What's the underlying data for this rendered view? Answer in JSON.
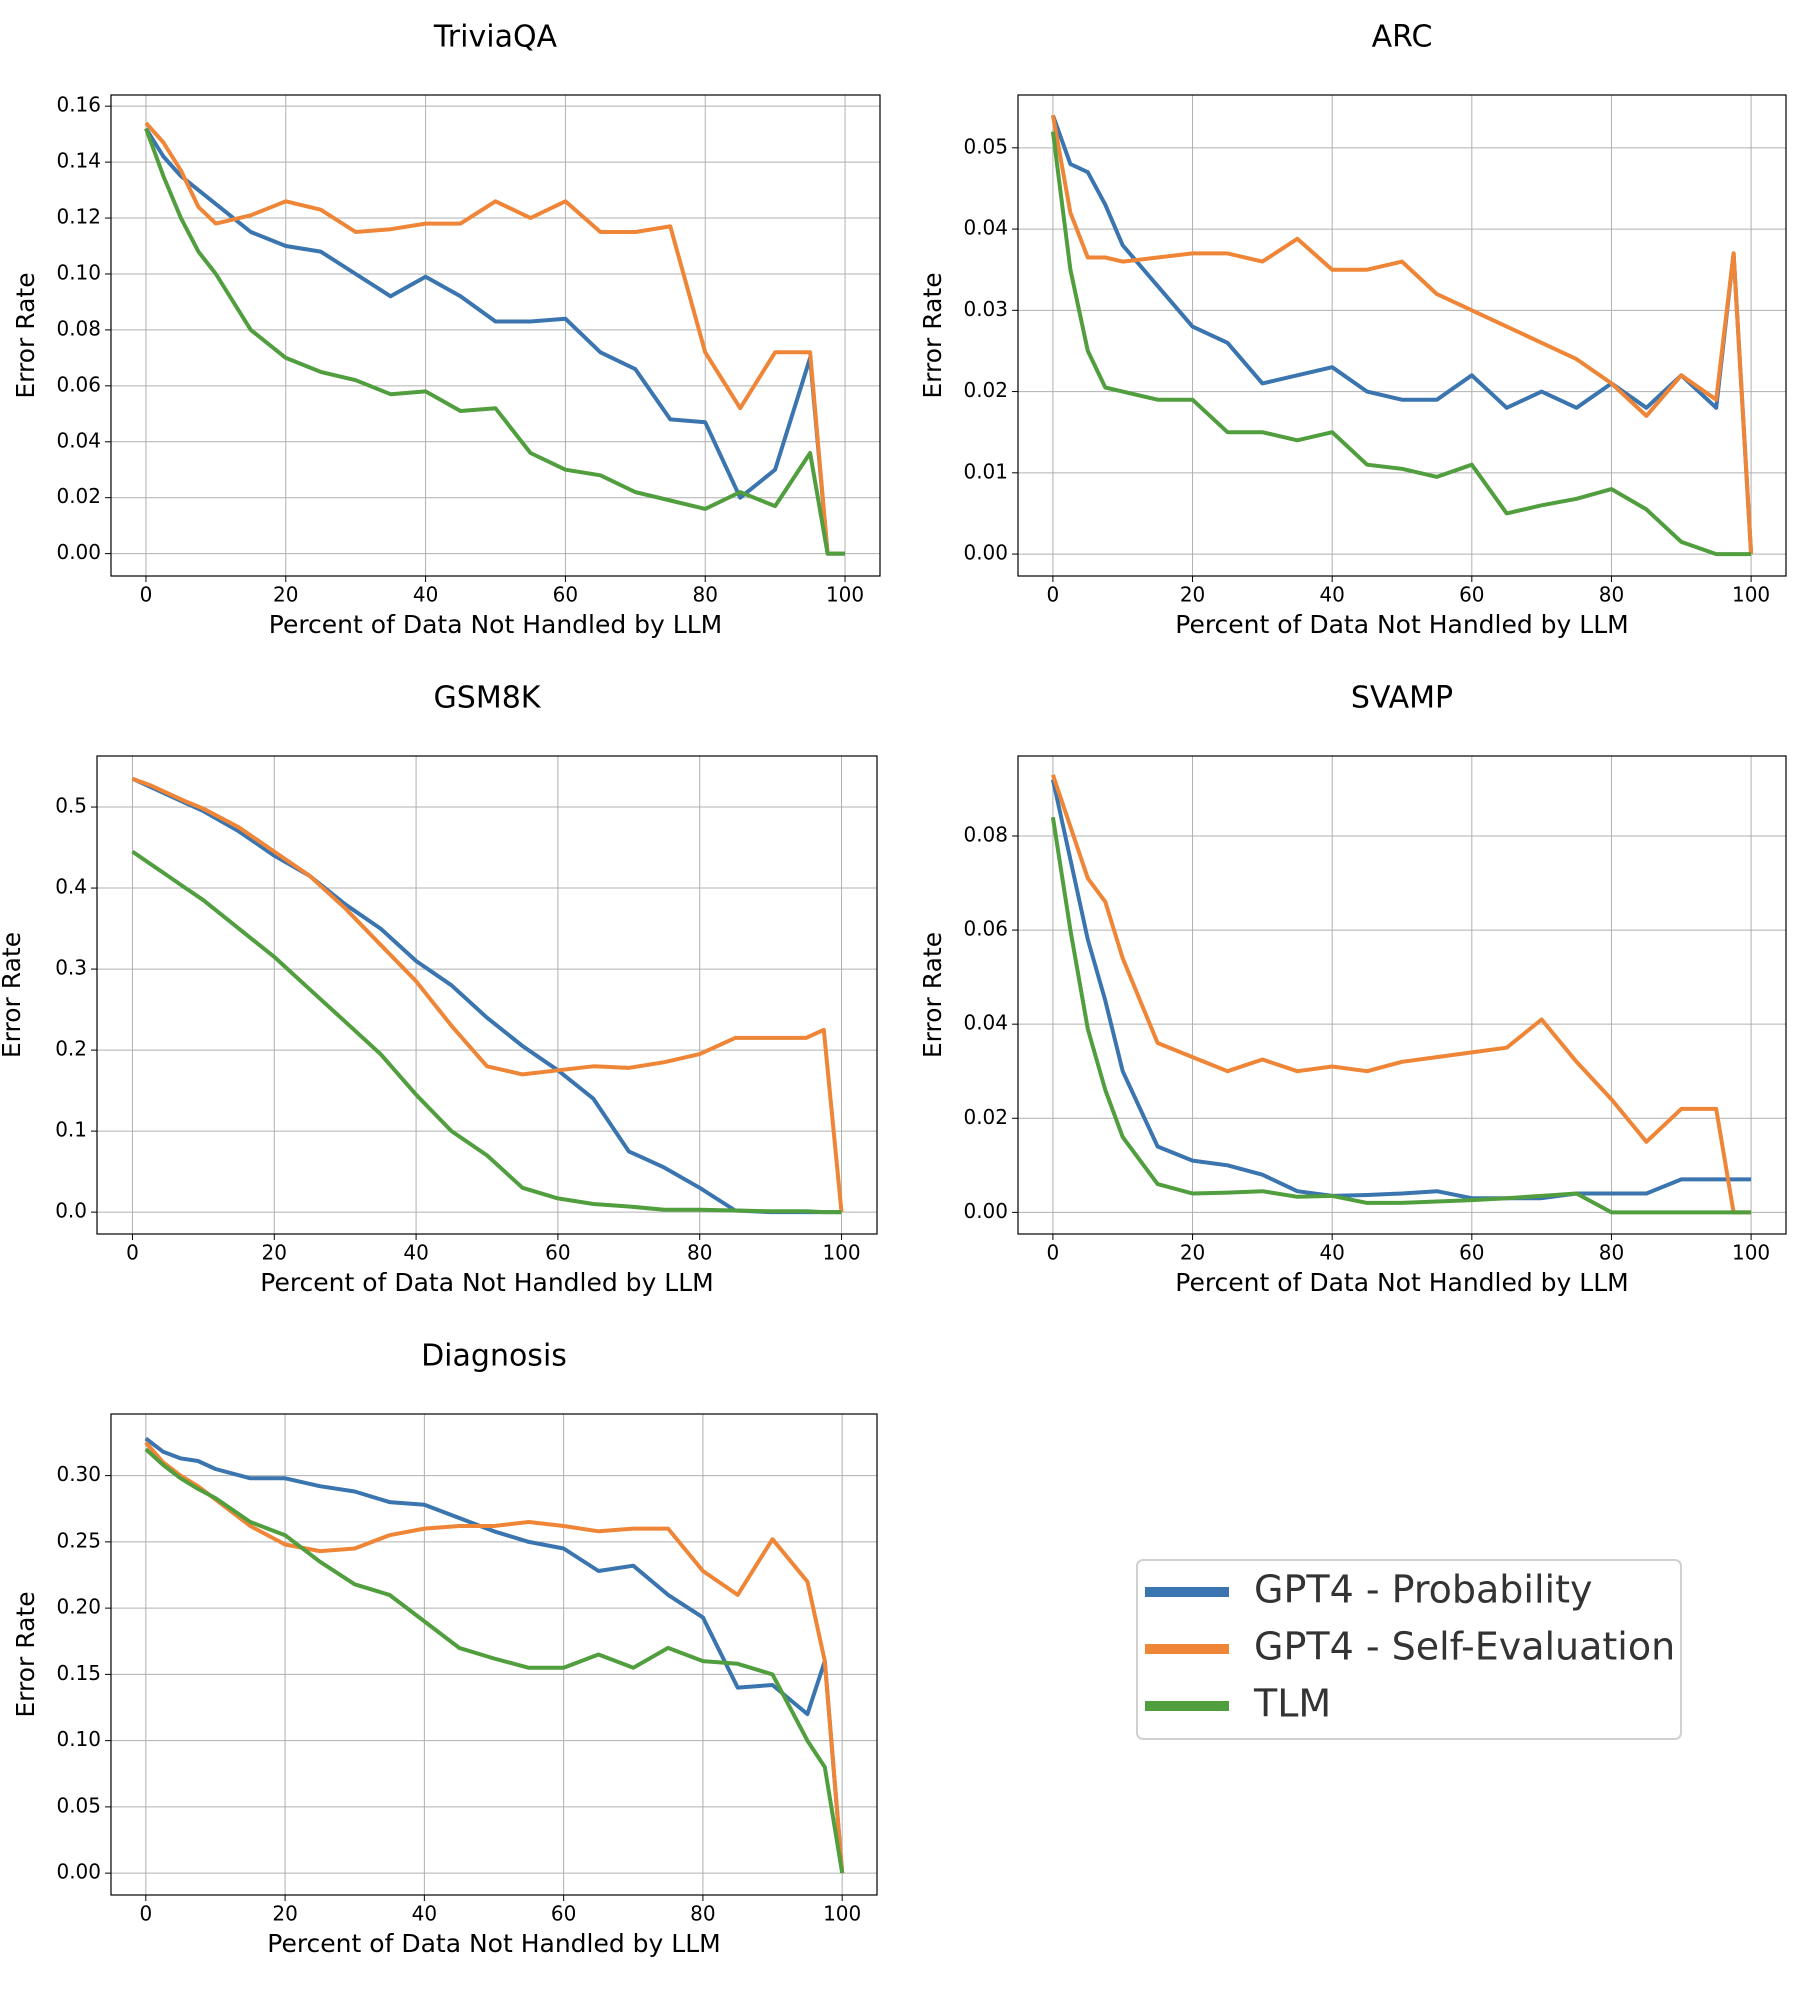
{
  "chart_data": [
    {
      "type": "line",
      "title": "TriviaQA",
      "xlabel": "Percent of Data Not Handled by LLM",
      "ylabel": "Error Rate",
      "grid": true,
      "legend": true,
      "x": [
        0,
        2.5,
        5,
        7.5,
        10,
        15,
        20,
        25,
        30,
        35,
        40,
        45,
        50,
        55,
        60,
        65,
        70,
        75,
        80,
        85,
        90,
        95,
        97.5,
        100
      ],
      "xlim": [
        -5,
        105
      ],
      "xticks": [
        0,
        20,
        40,
        60,
        80,
        100
      ],
      "ylim": [
        -0.008,
        0.164
      ],
      "yticks": [
        {
          "value": 0,
          "label": "0.00"
        },
        {
          "value": 0.02,
          "label": "0.02"
        },
        {
          "value": 0.04,
          "label": "0.04"
        },
        {
          "value": 0.06,
          "label": "0.06"
        },
        {
          "value": 0.08,
          "label": "0.08"
        },
        {
          "value": 0.1,
          "label": "0.10"
        },
        {
          "value": 0.12,
          "label": "0.12"
        },
        {
          "value": 0.14,
          "label": "0.14"
        },
        {
          "value": 0.16,
          "label": "0.16"
        }
      ],
      "series": [
        {
          "name": "GPT4 - Probability",
          "color": "#3a75af",
          "values": [
            0.152,
            0.142,
            0.135,
            0.13,
            0.125,
            0.115,
            0.11,
            0.108,
            0.1,
            0.092,
            0.099,
            0.092,
            0.083,
            0.083,
            0.084,
            0.072,
            0.066,
            0.048,
            0.047,
            0.02,
            0.03,
            0.07,
            0,
            0
          ]
        },
        {
          "name": "GPT4 - Self-Evaluation",
          "color": "#ef8536",
          "values": [
            0.154,
            0.147,
            0.137,
            0.124,
            0.118,
            0.121,
            0.126,
            0.123,
            0.115,
            0.116,
            0.118,
            0.118,
            0.126,
            0.12,
            0.126,
            0.115,
            0.115,
            0.117,
            0.072,
            0.052,
            0.072,
            0.072,
            0,
            0
          ]
        },
        {
          "name": "TLM",
          "color": "#519e3e",
          "values": [
            0.152,
            0.135,
            0.12,
            0.108,
            0.1,
            0.08,
            0.07,
            0.065,
            0.062,
            0.057,
            0.058,
            0.051,
            0.052,
            0.036,
            0.03,
            0.028,
            0.022,
            0.019,
            0.016,
            0.022,
            0.017,
            0.036,
            0,
            0
          ]
        }
      ]
    },
    {
      "type": "line",
      "title": "ARC",
      "xlabel": "Percent of Data Not Handled by LLM",
      "ylabel": "Error Rate",
      "grid": true,
      "x": [
        0,
        2.5,
        5,
        7.5,
        10,
        15,
        20,
        25,
        30,
        35,
        40,
        45,
        50,
        55,
        60,
        65,
        70,
        75,
        80,
        85,
        90,
        95,
        97.5,
        100
      ],
      "xlim": [
        -5,
        105
      ],
      "xticks": [
        0,
        20,
        40,
        60,
        80,
        100
      ],
      "ylim": [
        -0.0027,
        0.0565
      ],
      "yticks": [
        {
          "value": 0,
          "label": "0.00"
        },
        0.01,
        0.02,
        0.03,
        0.04,
        0.05
      ],
      "series": [
        {
          "name": "GPT4 - Probability",
          "color": "#3a75af",
          "values": [
            0.054,
            0.048,
            0.047,
            0.043,
            0.038,
            0.033,
            0.028,
            0.026,
            0.021,
            0.022,
            0.023,
            0.02,
            0.019,
            0.019,
            0.022,
            0.018,
            0.02,
            0.018,
            0.021,
            0.018,
            0.022,
            0.018,
            0.037,
            0
          ]
        },
        {
          "name": "GPT4 - Self-Evaluation",
          "color": "#ef8536",
          "values": [
            0.054,
            0.042,
            0.0365,
            0.0365,
            0.036,
            0.0365,
            0.037,
            0.037,
            0.036,
            0.0388,
            0.035,
            0.035,
            0.036,
            0.032,
            0.03,
            0.028,
            0.026,
            0.024,
            0.021,
            0.017,
            0.022,
            0.019,
            0.037,
            0
          ]
        },
        {
          "name": "TLM",
          "color": "#519e3e",
          "values": [
            0.052,
            0.035,
            0.025,
            0.0205,
            0.02,
            0.019,
            0.019,
            0.015,
            0.015,
            0.014,
            0.015,
            0.011,
            0.0105,
            0.0095,
            0.011,
            0.005,
            0.006,
            0.0068,
            0.008,
            0.0055,
            0.0015,
            0,
            0,
            0
          ]
        }
      ]
    },
    {
      "type": "line",
      "title": "GSM8K",
      "xlabel": "Percent of Data Not Handled by LLM",
      "ylabel": "Error Rate",
      "grid": true,
      "x": [
        0,
        2.5,
        5,
        7.5,
        10,
        15,
        20,
        25,
        30,
        35,
        40,
        45,
        50,
        55,
        60,
        65,
        70,
        75,
        80,
        85,
        90,
        95,
        97.5,
        100
      ],
      "xlim": [
        -5,
        105
      ],
      "xticks": [
        0,
        20,
        40,
        60,
        80,
        100
      ],
      "ylim": [
        -0.027,
        0.563
      ],
      "yticks": [
        {
          "value": 0,
          "label": "0.0"
        },
        0.1,
        0.2,
        0.3,
        0.4,
        0.5
      ],
      "series": [
        {
          "name": "GPT4 - Probability",
          "color": "#3a75af",
          "values": [
            0.535,
            0.525,
            0.515,
            0.505,
            0.495,
            0.47,
            0.44,
            0.415,
            0.38,
            0.35,
            0.31,
            0.28,
            0.24,
            0.205,
            0.175,
            0.14,
            0.075,
            0.055,
            0.03,
            0.002,
            0,
            0,
            0,
            0
          ]
        },
        {
          "name": "GPT4 - Self-Evaluation",
          "color": "#ef8536",
          "values": [
            0.535,
            0.527,
            0.517,
            0.507,
            0.498,
            0.475,
            0.445,
            0.415,
            0.375,
            0.33,
            0.285,
            0.23,
            0.18,
            0.17,
            0.175,
            0.18,
            0.178,
            0.185,
            0.195,
            0.215,
            0.215,
            0.215,
            0.225,
            0
          ]
        },
        {
          "name": "TLM",
          "color": "#519e3e",
          "values": [
            0.445,
            0.43,
            0.415,
            0.4,
            0.385,
            0.35,
            0.315,
            0.275,
            0.235,
            0.195,
            0.145,
            0.1,
            0.07,
            0.03,
            0.017,
            0.01,
            0.007,
            0.003,
            0.003,
            0.002,
            0.001,
            0.001,
            0,
            0
          ]
        }
      ]
    },
    {
      "type": "line",
      "title": "SVAMP",
      "xlabel": "Percent of Data Not Handled by LLM",
      "ylabel": "Error Rate",
      "grid": true,
      "x": [
        0,
        2.5,
        5,
        7.5,
        10,
        15,
        20,
        25,
        30,
        35,
        40,
        45,
        50,
        55,
        60,
        65,
        70,
        75,
        80,
        85,
        90,
        95,
        97.5,
        100
      ],
      "xlim": [
        -5,
        105
      ],
      "xticks": [
        0,
        20,
        40,
        60,
        80,
        100
      ],
      "ylim": [
        -0.0046,
        0.097
      ],
      "yticks": [
        {
          "value": 0,
          "label": "0.00"
        },
        {
          "value": 0.02,
          "label": "0.02"
        },
        {
          "value": 0.04,
          "label": "0.04"
        },
        {
          "value": 0.06,
          "label": "0.06"
        },
        {
          "value": 0.08,
          "label": "0.08"
        }
      ],
      "series": [
        {
          "name": "GPT4 - Probability",
          "color": "#3a75af",
          "values": [
            0.092,
            0.075,
            0.058,
            0.045,
            0.03,
            0.014,
            0.011,
            0.01,
            0.008,
            0.0045,
            0.0035,
            0.0037,
            0.004,
            0.0045,
            0.003,
            0.003,
            0.003,
            0.004,
            0.004,
            0.004,
            0.007,
            0.007,
            0.007,
            0.007
          ]
        },
        {
          "name": "GPT4 - Self-Evaluation",
          "color": "#ef8536",
          "values": [
            0.093,
            0.082,
            0.071,
            0.066,
            0.054,
            0.036,
            0.033,
            0.03,
            0.0325,
            0.03,
            0.031,
            0.03,
            0.032,
            0.033,
            0.034,
            0.035,
            0.041,
            0.032,
            0.024,
            0.015,
            0.022,
            0.022,
            0,
            0
          ]
        },
        {
          "name": "TLM",
          "color": "#519e3e",
          "values": [
            0.084,
            0.06,
            0.039,
            0.026,
            0.016,
            0.006,
            0.004,
            0.0042,
            0.0045,
            0.0033,
            0.0035,
            0.002,
            0.002,
            0.0023,
            0.0026,
            0.003,
            0.0035,
            0.004,
            0,
            0,
            0,
            0,
            0,
            0
          ]
        }
      ]
    },
    {
      "type": "line",
      "title": "Diagnosis",
      "xlabel": "Percent of Data Not Handled by LLM",
      "ylabel": "Error Rate",
      "grid": true,
      "x": [
        0,
        2.5,
        5,
        7.5,
        10,
        15,
        20,
        25,
        30,
        35,
        40,
        45,
        50,
        55,
        60,
        65,
        70,
        75,
        80,
        85,
        90,
        95,
        97.5,
        100
      ],
      "xlim": [
        -5,
        105
      ],
      "xticks": [
        0,
        20,
        40,
        60,
        80,
        100
      ],
      "ylim": [
        -0.0165,
        0.3465
      ],
      "yticks": [
        {
          "value": 0,
          "label": "0.00"
        },
        0.05,
        {
          "value": 0.1,
          "label": "0.10"
        },
        0.15,
        {
          "value": 0.2,
          "label": "0.20"
        },
        0.25,
        {
          "value": 0.3,
          "label": "0.30"
        }
      ],
      "series": [
        {
          "name": "GPT4 - Probability",
          "color": "#3a75af",
          "values": [
            0.328,
            0.318,
            0.313,
            0.311,
            0.305,
            0.298,
            0.298,
            0.292,
            0.288,
            0.28,
            0.278,
            0.268,
            0.258,
            0.25,
            0.245,
            0.228,
            0.232,
            0.21,
            0.193,
            0.14,
            0.142,
            0.12,
            0.16,
            0
          ]
        },
        {
          "name": "GPT4 - Self-Evaluation",
          "color": "#ef8536",
          "values": [
            0.325,
            0.31,
            0.3,
            0.292,
            0.282,
            0.262,
            0.248,
            0.243,
            0.245,
            0.255,
            0.26,
            0.262,
            0.262,
            0.265,
            0.262,
            0.258,
            0.26,
            0.26,
            0.228,
            0.21,
            0.252,
            0.22,
            0.16,
            0
          ]
        },
        {
          "name": "TLM",
          "color": "#519e3e",
          "values": [
            0.32,
            0.308,
            0.298,
            0.29,
            0.283,
            0.265,
            0.255,
            0.235,
            0.218,
            0.21,
            0.19,
            0.17,
            0.162,
            0.155,
            0.155,
            0.165,
            0.155,
            0.17,
            0.16,
            0.158,
            0.15,
            0.1,
            0.08,
            0
          ]
        }
      ]
    }
  ]
}
